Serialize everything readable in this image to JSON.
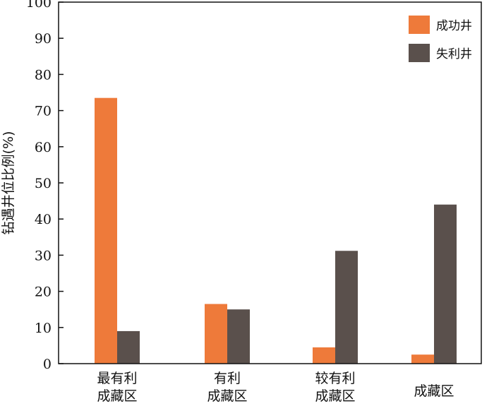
{
  "chart_data": {
    "type": "bar",
    "categories": [
      [
        "最有利",
        "成藏区"
      ],
      [
        "有利",
        "成藏区"
      ],
      [
        "较有利",
        "成藏区"
      ],
      [
        "成藏区"
      ]
    ],
    "series": [
      {
        "name": "成功井",
        "color": "#ee7a3a",
        "values": [
          73.5,
          16.5,
          4.5,
          2.5
        ]
      },
      {
        "name": "失利井",
        "color": "#5a504c",
        "values": [
          9,
          15,
          31.2,
          44
        ]
      }
    ],
    "ylabel": "钻遇井位比例(%)",
    "ylim": [
      0,
      100
    ],
    "yticks": [
      0,
      10,
      20,
      30,
      40,
      50,
      60,
      70,
      80,
      90,
      100
    ],
    "grid": false,
    "legend": "top-right"
  }
}
